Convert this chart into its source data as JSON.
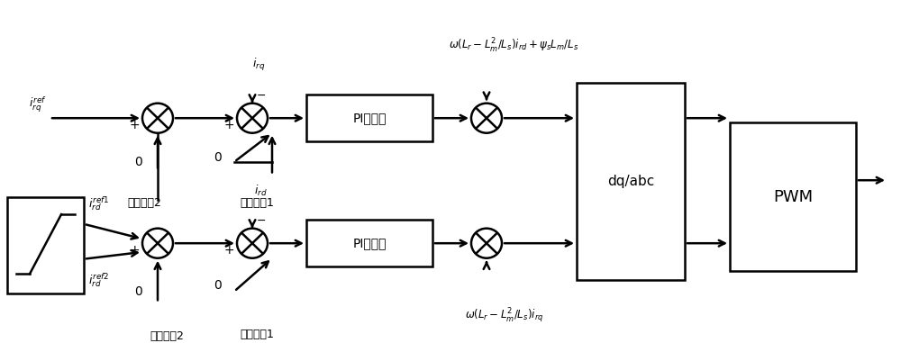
{
  "bg_color": "#ffffff",
  "line_color": "#000000",
  "text_color": "#000000",
  "fig_width": 10.0,
  "fig_height": 3.81,
  "dpi": 100,
  "label_irq_ref": "$i_{rq}^{ref}$",
  "label_0_upper_left": "0",
  "label_enable2_upper": "使能信号2",
  "label_irq": "$i_{rq}$",
  "label_0_upper_mid": "0",
  "label_enable1_upper": "使能信号1",
  "label_PI_upper": "PI控制器",
  "label_formula_upper": "$\\omega(L_r - L_m^2/L_s)i_{rd} + \\psi_s L_m/L_s$",
  "label_dq_abc": "dq/abc",
  "label_PWM": "PWM",
  "label_ird_ref1": "$i_{rd}^{ref1}$",
  "label_ird_ref2": "$i_{rd}^{ref2}$",
  "label_ird": "$i_{rd}$",
  "label_0_lower_left": "0",
  "label_enable2_lower": "使能信号2",
  "label_0_lower_mid": "0",
  "label_enable1_lower": "使能信号1",
  "label_PI_lower": "PI控制器",
  "label_formula_lower": "$\\omega(L_r - L_m^2/L_s)i_{rq}$",
  "label_minus_upper": "$-$",
  "label_plus_upper": "+",
  "label_minus_lower": "$-$",
  "label_plus_lower": "+"
}
